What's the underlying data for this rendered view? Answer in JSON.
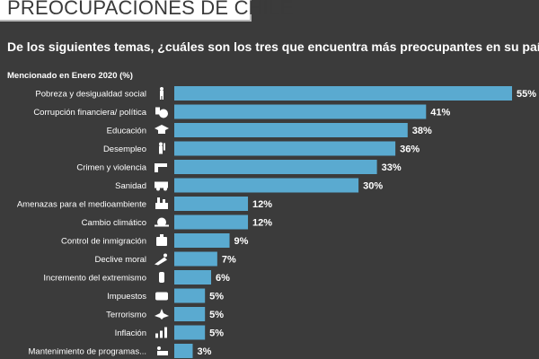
{
  "header": {
    "title": "PREOCUPACIONES DE CHILE",
    "question": "De los siguientes temas, ¿cuáles son los tres que encuentra más preocupantes en su país?",
    "subtitle": "Mencionado  en Enero 2020  (%)"
  },
  "colors": {
    "background": "#3b3b3b",
    "bar": "#5aaad0",
    "text": "#ffffff"
  },
  "chart_data": {
    "type": "bar",
    "orientation": "horizontal",
    "title": "PREOCUPACIONES DE CHILE",
    "xlabel": "",
    "ylabel": "",
    "xlim": [
      0,
      55
    ],
    "value_suffix": "%",
    "categories": [
      "Pobreza y desigualdad social",
      "Corrupción financiera/ política",
      "Educación",
      "Desempleo",
      "Crimen y violencia",
      "Sanidad",
      "Amenazas para el medioambiente",
      "Cambio climático",
      "Control de inmigración",
      "Declive moral",
      "Incremento del extremismo",
      "Impuestos",
      "Terrorismo",
      "Inflación",
      "Mantenimiento de programas..."
    ],
    "values": [
      55,
      41,
      38,
      36,
      33,
      30,
      12,
      12,
      9,
      7,
      6,
      5,
      5,
      5,
      3
    ],
    "value_labels": [
      "55%",
      "41%",
      "38%",
      "36%",
      "33%",
      "30%",
      "12%",
      "12%",
      "9%",
      "7%",
      "6%",
      "5%",
      "5%",
      "5%",
      "3%"
    ],
    "icons": [
      "person-icon",
      "money-bag-icon",
      "graduation-cap-icon",
      "worker-icon",
      "gun-icon",
      "ambulance-icon",
      "factory-icon",
      "planet-icon",
      "luggage-icon",
      "falling-person-icon",
      "bomb-icon",
      "tax-icon",
      "explosion-icon",
      "rising-chart-icon",
      "program-icon"
    ]
  }
}
